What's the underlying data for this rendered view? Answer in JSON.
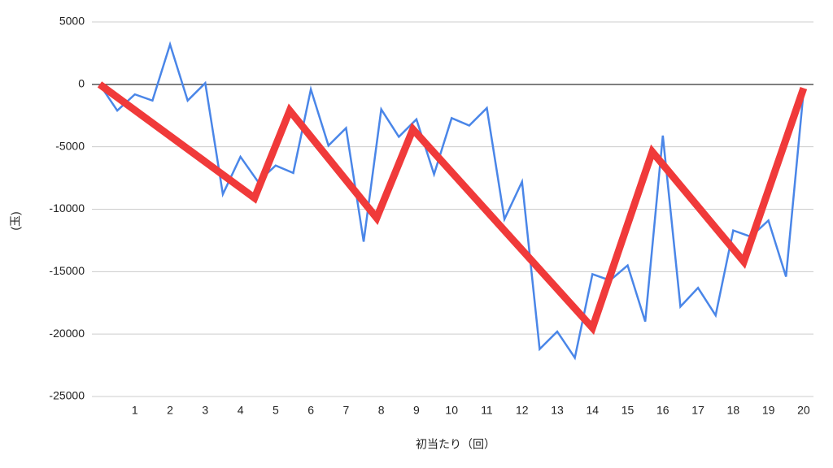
{
  "chart_data": {
    "type": "line",
    "x_label": "初当たり（回）",
    "y_label": "(玉)",
    "xlim": [
      -0.22,
      20.28
    ],
    "xticks": [
      1,
      2,
      3,
      4,
      5,
      6,
      7,
      8,
      9,
      10,
      11,
      12,
      13,
      14,
      15,
      16,
      17,
      18,
      19,
      20
    ],
    "ylim": [
      -25000,
      5000
    ],
    "yticks": [
      5000,
      0,
      -5000,
      -10000,
      -15000,
      -20000,
      -25000
    ],
    "grid": true,
    "series": [
      {
        "color": "#4a86e8",
        "width": 2.5,
        "x": [
          0,
          0.5,
          1,
          1.5,
          2,
          2.5,
          3,
          3.5,
          4,
          4.5,
          5,
          5.5,
          6,
          6.5,
          7,
          7.5,
          8,
          8.5,
          9,
          9.5,
          10,
          10.5,
          11,
          11.5,
          12,
          12.5,
          13,
          13.5,
          14,
          14.5,
          15,
          15.5,
          16,
          16.5,
          17,
          17.5,
          18,
          18.5,
          19,
          19.5,
          20
        ],
        "values": [
          0,
          -2100,
          -800,
          -1300,
          3200,
          -1300,
          100,
          -8800,
          -5800,
          -7800,
          -6500,
          -7100,
          -400,
          -4900,
          -3500,
          -12600,
          -2000,
          -4200,
          -2800,
          -7200,
          -2700,
          -3300,
          -1900,
          -10800,
          -7800,
          -21200,
          -19800,
          -21900,
          -15200,
          -15700,
          -14500,
          -19000,
          -4100,
          -17800,
          -16300,
          -18500,
          -11700,
          -12200,
          -10900,
          -15400,
          -500
        ]
      },
      {
        "color": "#f03a3a",
        "width": 9,
        "x": [
          0,
          4.4,
          5.4,
          7.87,
          8.9,
          14.0,
          15.7,
          18.3,
          20.0
        ],
        "values": [
          0,
          -9100,
          -2100,
          -10700,
          -3600,
          -19500,
          -5400,
          -14200,
          -300
        ]
      }
    ]
  }
}
